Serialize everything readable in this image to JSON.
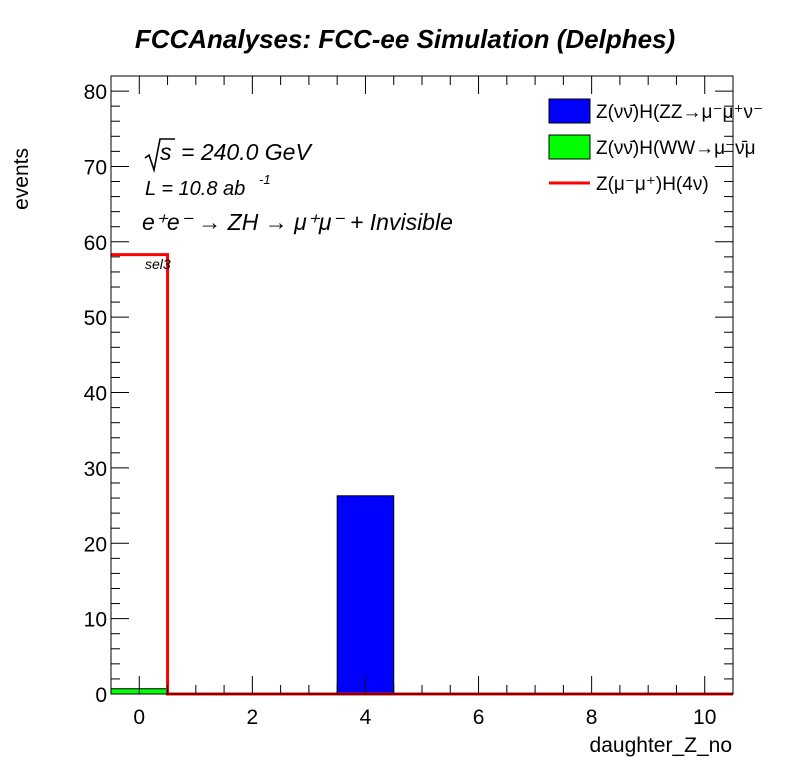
{
  "chart_data": {
    "type": "bar",
    "title": "FCCAnalyses: FCC-ee Simulation (Delphes)",
    "xlabel": "daughter_Z_no",
    "ylabel": "events",
    "xlim": [
      -0.5,
      10.5
    ],
    "ylim": [
      0,
      82
    ],
    "xticks": [
      0,
      2,
      4,
      6,
      8,
      10
    ],
    "yticks": [
      0,
      10,
      20,
      30,
      40,
      50,
      60,
      70,
      80
    ],
    "annotations": {
      "sqrt_s": "= 240.0 GeV",
      "lumi": "L = 10.8 ab",
      "lumi_exp": "-1",
      "process": "e⁺e⁻ → ZH → μ⁺μ⁻ + Invisible",
      "selection": "sel3"
    },
    "series": [
      {
        "name": "Z(νν̄)H(ZZ→μ⁻μ⁺ν⁻",
        "style": "filled",
        "color": "#0000ff",
        "bins": [
          {
            "x": 4,
            "y": 26.3
          }
        ]
      },
      {
        "name": "Z(νν̄)H(WW→μ⁻ν̄μ",
        "style": "filled",
        "color": "#00ff00",
        "bins": [
          {
            "x": 0,
            "y": 0.7
          }
        ]
      },
      {
        "name": "Z(μ⁻μ⁺)H(4ν)",
        "style": "line",
        "color": "#ff0000",
        "bins": [
          {
            "x": 0,
            "y": 58.3
          }
        ]
      }
    ],
    "legend_position": "top-right"
  }
}
